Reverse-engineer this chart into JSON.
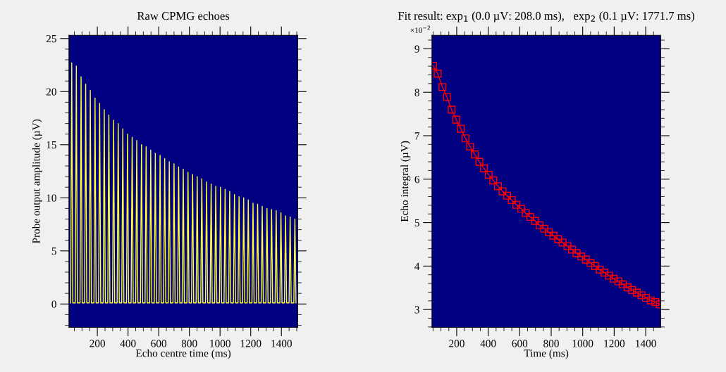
{
  "chart_data": [
    {
      "type": "line",
      "title": "Raw CPMG echoes",
      "xlabel": "Echo centre time (ms)",
      "ylabel": "Probe output amplitude (µV)",
      "xlim": [
        15,
        1506
      ],
      "ylim": [
        -2.2,
        25.3
      ],
      "xticks": [
        200,
        400,
        600,
        800,
        1000,
        1200,
        1400
      ],
      "yticks": [
        0,
        5,
        10,
        15,
        20,
        25
      ],
      "grid": false,
      "legend": false,
      "marker": "none",
      "line_style": "solid",
      "series": [
        {
          "color": "#ffff33",
          "x": [
            26,
            33,
            40,
            56,
            63,
            70,
            87,
            94,
            101,
            117,
            124,
            131,
            147,
            154,
            161,
            178,
            185,
            192,
            208,
            215,
            222,
            238,
            245,
            252,
            268,
            275,
            282,
            299,
            306,
            313,
            329,
            336,
            343,
            359,
            366,
            373,
            390,
            397,
            404,
            420,
            427,
            434,
            450,
            457,
            464,
            481,
            488,
            495,
            511,
            518,
            525,
            541,
            548,
            555,
            571,
            578,
            585,
            602,
            609,
            616,
            632,
            639,
            646,
            662,
            669,
            676,
            693,
            700,
            707,
            723,
            730,
            737,
            753,
            760,
            767,
            784,
            791,
            798,
            814,
            821,
            828,
            844,
            851,
            858,
            874,
            881,
            888,
            905,
            912,
            919,
            935,
            942,
            949,
            965,
            972,
            979,
            996,
            1003,
            1010,
            1026,
            1033,
            1040,
            1056,
            1063,
            1070,
            1087,
            1094,
            1101,
            1117,
            1124,
            1131,
            1147,
            1154,
            1161,
            1177,
            1184,
            1191,
            1208,
            1215,
            1222,
            1238,
            1245,
            1252,
            1268,
            1275,
            1282,
            1299,
            1306,
            1313,
            1329,
            1336,
            1343,
            1359,
            1366,
            1373,
            1390,
            1397,
            1404,
            1420,
            1427,
            1434,
            1450,
            1457,
            1464,
            1481,
            1488,
            1495
          ],
          "values": [
            0.1,
            22.7,
            0.1,
            0.1,
            22.4,
            0.1,
            0.1,
            21.4,
            0.1,
            0.1,
            20.7,
            0.1,
            0.1,
            20.1,
            0.1,
            0.1,
            19.4,
            0.1,
            0.1,
            18.9,
            0.1,
            0.1,
            18.3,
            0.1,
            0.1,
            17.8,
            0.1,
            0.1,
            17.3,
            0.1,
            0.1,
            17.0,
            0.1,
            0.1,
            16.5,
            0.1,
            0.1,
            16.0,
            0.1,
            0.1,
            15.7,
            0.1,
            0.1,
            15.4,
            0.1,
            0.1,
            15.0,
            0.1,
            0.1,
            14.8,
            0.1,
            0.1,
            14.5,
            0.1,
            0.1,
            14.2,
            0.1,
            0.1,
            14.0,
            0.1,
            0.1,
            13.7,
            0.1,
            0.1,
            13.4,
            0.1,
            0.1,
            13.2,
            0.1,
            0.1,
            12.9,
            0.1,
            0.1,
            12.7,
            0.1,
            0.1,
            12.4,
            0.1,
            0.1,
            12.2,
            0.1,
            0.1,
            12.0,
            0.1,
            0.1,
            11.8,
            0.1,
            0.1,
            11.5,
            0.1,
            0.1,
            11.3,
            0.1,
            0.1,
            11.1,
            0.1,
            0.1,
            11.0,
            0.1,
            0.1,
            10.8,
            0.1,
            0.1,
            10.6,
            0.1,
            0.1,
            10.3,
            0.1,
            0.1,
            10.1,
            0.1,
            0.1,
            10.0,
            0.1,
            0.1,
            9.8,
            0.1,
            0.1,
            9.5,
            0.1,
            0.1,
            9.4,
            0.1,
            0.1,
            9.2,
            0.1,
            0.1,
            9.0,
            0.1,
            0.1,
            8.9,
            0.1,
            0.1,
            8.8,
            0.1,
            0.1,
            8.6,
            0.1,
            0.1,
            8.3,
            0.1,
            0.1,
            8.2,
            0.1,
            0.1,
            8.0,
            0.1
          ]
        }
      ]
    },
    {
      "type": "line",
      "title": "Fit result: exp$_{1}$ (0.0 µV: 208.0 ms),   exp$_{2}$ (0.1 µV: 1771.7 ms)",
      "xlabel": "Time (ms)",
      "ylabel": "Echo integral (µV)",
      "annotations": [
        "×10$^{−2}$"
      ],
      "xlim": [
        43,
        1495
      ],
      "ylim": [
        2.59,
        9.31
      ],
      "xticks": [
        200,
        400,
        600,
        800,
        1000,
        1200,
        1400
      ],
      "yticks": [
        3,
        4,
        5,
        6,
        7,
        8,
        9
      ],
      "grid": false,
      "legend": false,
      "marker": "square",
      "line_style": "solid",
      "series": [
        {
          "color": "#ff0000",
          "x": [
            50,
            79,
            109,
            138,
            168,
            197,
            226,
            256,
            285,
            315,
            344,
            373,
            403,
            432,
            462,
            491,
            520,
            550,
            579,
            609,
            638,
            667,
            697,
            726,
            756,
            785,
            814,
            844,
            873,
            903,
            932,
            961,
            991,
            1020,
            1050,
            1079,
            1108,
            1138,
            1167,
            1197,
            1226,
            1255,
            1285,
            1314,
            1344,
            1373,
            1402,
            1432,
            1461,
            1490
          ],
          "values": [
            8.61,
            8.43,
            8.12,
            7.89,
            7.6,
            7.37,
            7.16,
            6.94,
            6.75,
            6.57,
            6.4,
            6.25,
            6.1,
            5.97,
            5.84,
            5.72,
            5.62,
            5.52,
            5.41,
            5.32,
            5.22,
            5.13,
            5.04,
            4.94,
            4.86,
            4.78,
            4.7,
            4.62,
            4.54,
            4.46,
            4.38,
            4.3,
            4.22,
            4.15,
            4.07,
            4.0,
            3.92,
            3.85,
            3.78,
            3.71,
            3.65,
            3.58,
            3.51,
            3.45,
            3.39,
            3.33,
            3.27,
            3.21,
            3.17,
            3.12
          ]
        }
      ]
    }
  ]
}
